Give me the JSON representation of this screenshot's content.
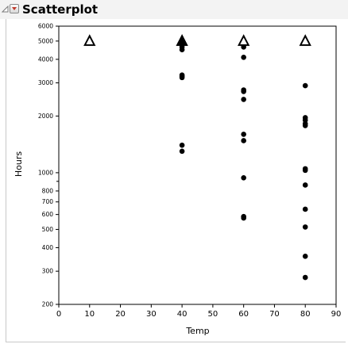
{
  "outline": {
    "title": "Scatterplot"
  },
  "chart_data": {
    "type": "scatter",
    "xlabel": "Temp",
    "ylabel": "Hours",
    "xlim": [
      0,
      90
    ],
    "ylim": [
      200,
      6000
    ],
    "y_scale": "log",
    "x_ticks": [
      "0",
      "10",
      "20",
      "30",
      "40",
      "50",
      "60",
      "70",
      "80",
      "90"
    ],
    "y_ticks_major": [
      "200",
      "300",
      "400",
      "500",
      "600",
      "700",
      "800",
      "1000",
      "2000",
      "3000",
      "4000",
      "5000",
      "6000"
    ],
    "y_ticks_major_values": [
      200,
      300,
      400,
      500,
      600,
      700,
      800,
      1000,
      2000,
      3000,
      4000,
      5000,
      6000
    ],
    "y_ticks_minor_values": [
      900
    ],
    "grid": false,
    "series": [
      {
        "marker": "dot",
        "color": "#000000",
        "x": [
          40,
          40,
          40,
          40,
          40,
          40,
          40,
          40,
          60,
          60,
          60,
          60,
          60,
          60,
          60,
          60,
          60,
          60,
          80,
          80,
          80,
          80,
          80,
          80,
          80,
          80,
          80,
          80,
          80,
          80
        ],
        "y": [
          4800,
          4650,
          4500,
          3300,
          3250,
          3200,
          1400,
          1300,
          4650,
          4100,
          2750,
          2700,
          2450,
          1600,
          1480,
          940,
          585,
          575,
          2900,
          1960,
          1900,
          1820,
          1780,
          1050,
          1030,
          860,
          640,
          515,
          360,
          278
        ]
      },
      {
        "marker": "open-triangle",
        "color": "#000000",
        "x": [
          10,
          40,
          60,
          80
        ],
        "y": [
          5000,
          5000,
          5000,
          5000
        ]
      },
      {
        "marker": "filled-triangle",
        "color": "#000000",
        "x": [
          40
        ],
        "y": [
          5000
        ]
      }
    ]
  }
}
